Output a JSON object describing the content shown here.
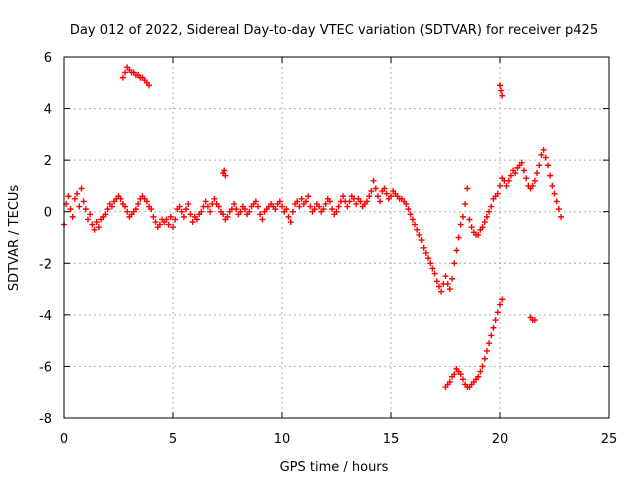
{
  "chart_data": {
    "type": "scatter",
    "title": "Day 012 of 2022, Sidereal Day-to-day VTEC variation (SDTVAR) for receiver p425",
    "xlabel": "GPS time / hours",
    "ylabel": "SDTVAR / TECUs",
    "xlim": [
      0,
      25
    ],
    "ylim": [
      -8,
      6
    ],
    "xticks": [
      0,
      5,
      10,
      15,
      20,
      25
    ],
    "yticks": [
      -8,
      -6,
      -4,
      -2,
      0,
      2,
      4,
      6
    ],
    "grid": true,
    "marker": "+",
    "color": "#ff0000",
    "series": [
      {
        "name": "SDTVAR",
        "points": [
          [
            0.0,
            -0.5
          ],
          [
            0.1,
            0.3
          ],
          [
            0.2,
            0.6
          ],
          [
            0.3,
            0.1
          ],
          [
            0.4,
            -0.2
          ],
          [
            0.5,
            0.5
          ],
          [
            0.6,
            0.7
          ],
          [
            0.7,
            0.2
          ],
          [
            0.8,
            0.9
          ],
          [
            0.9,
            0.4
          ],
          [
            1.0,
            0.1
          ],
          [
            1.1,
            -0.3
          ],
          [
            1.2,
            -0.1
          ],
          [
            1.3,
            -0.5
          ],
          [
            1.4,
            -0.7
          ],
          [
            1.5,
            -0.4
          ],
          [
            1.6,
            -0.6
          ],
          [
            1.7,
            -0.3
          ],
          [
            1.8,
            -0.2
          ],
          [
            1.9,
            -0.1
          ],
          [
            2.0,
            0.1
          ],
          [
            2.1,
            0.3
          ],
          [
            2.2,
            0.2
          ],
          [
            2.3,
            0.4
          ],
          [
            2.4,
            0.5
          ],
          [
            2.5,
            0.6
          ],
          [
            2.6,
            0.5
          ],
          [
            2.7,
            0.3
          ],
          [
            2.8,
            0.2
          ],
          [
            2.9,
            0.0
          ],
          [
            3.0,
            -0.2
          ],
          [
            3.1,
            -0.1
          ],
          [
            3.2,
            0.0
          ],
          [
            3.3,
            0.1
          ],
          [
            3.4,
            0.3
          ],
          [
            3.5,
            0.5
          ],
          [
            3.6,
            0.6
          ],
          [
            3.7,
            0.5
          ],
          [
            3.8,
            0.4
          ],
          [
            3.9,
            0.2
          ],
          [
            4.0,
            0.1
          ],
          [
            4.1,
            -0.2
          ],
          [
            4.2,
            -0.4
          ],
          [
            4.3,
            -0.6
          ],
          [
            4.4,
            -0.5
          ],
          [
            4.5,
            -0.3
          ],
          [
            4.6,
            -0.4
          ],
          [
            4.7,
            -0.3
          ],
          [
            4.8,
            -0.5
          ],
          [
            4.9,
            -0.2
          ],
          [
            5.0,
            -0.6
          ],
          [
            5.1,
            -0.3
          ],
          [
            5.2,
            0.1
          ],
          [
            5.3,
            0.2
          ],
          [
            5.4,
            0.0
          ],
          [
            5.5,
            -0.2
          ],
          [
            5.6,
            0.1
          ],
          [
            5.7,
            0.3
          ],
          [
            5.8,
            -0.1
          ],
          [
            5.9,
            -0.4
          ],
          [
            6.0,
            -0.2
          ],
          [
            6.1,
            -0.3
          ],
          [
            6.2,
            -0.1
          ],
          [
            6.3,
            0.0
          ],
          [
            6.4,
            0.2
          ],
          [
            6.5,
            0.4
          ],
          [
            6.6,
            0.2
          ],
          [
            6.7,
            0.0
          ],
          [
            6.8,
            0.3
          ],
          [
            6.9,
            0.5
          ],
          [
            7.0,
            0.3
          ],
          [
            7.1,
            0.2
          ],
          [
            7.2,
            0.0
          ],
          [
            7.3,
            -0.1
          ],
          [
            7.4,
            -0.3
          ],
          [
            7.5,
            -0.2
          ],
          [
            7.6,
            0.0
          ],
          [
            7.7,
            0.1
          ],
          [
            7.8,
            0.3
          ],
          [
            7.9,
            0.1
          ],
          [
            8.0,
            -0.1
          ],
          [
            8.1,
            0.0
          ],
          [
            8.2,
            0.2
          ],
          [
            8.3,
            0.1
          ],
          [
            8.4,
            -0.1
          ],
          [
            8.5,
            0.0
          ],
          [
            8.6,
            0.2
          ],
          [
            8.7,
            0.3
          ],
          [
            8.8,
            0.4
          ],
          [
            8.9,
            0.2
          ],
          [
            9.0,
            -0.1
          ],
          [
            9.1,
            -0.3
          ],
          [
            9.2,
            0.0
          ],
          [
            9.3,
            0.1
          ],
          [
            9.4,
            0.2
          ],
          [
            9.5,
            0.3
          ],
          [
            9.6,
            0.2
          ],
          [
            9.7,
            0.1
          ],
          [
            9.8,
            0.3
          ],
          [
            9.9,
            0.4
          ],
          [
            10.0,
            0.2
          ],
          [
            10.1,
            0.0
          ],
          [
            10.2,
            0.1
          ],
          [
            10.3,
            -0.2
          ],
          [
            10.4,
            -0.4
          ],
          [
            10.5,
            0.0
          ],
          [
            10.6,
            0.3
          ],
          [
            10.7,
            0.4
          ],
          [
            10.8,
            0.2
          ],
          [
            10.9,
            0.5
          ],
          [
            11.0,
            0.3
          ],
          [
            11.1,
            0.4
          ],
          [
            11.2,
            0.6
          ],
          [
            11.3,
            0.2
          ],
          [
            11.4,
            0.0
          ],
          [
            11.5,
            0.1
          ],
          [
            11.6,
            0.3
          ],
          [
            11.7,
            0.2
          ],
          [
            11.8,
            0.0
          ],
          [
            11.9,
            0.1
          ],
          [
            12.0,
            0.3
          ],
          [
            12.1,
            0.5
          ],
          [
            12.2,
            0.4
          ],
          [
            12.3,
            0.1
          ],
          [
            12.4,
            -0.1
          ],
          [
            12.5,
            0.0
          ],
          [
            12.6,
            0.2
          ],
          [
            12.7,
            0.4
          ],
          [
            12.8,
            0.6
          ],
          [
            12.9,
            0.4
          ],
          [
            13.0,
            0.2
          ],
          [
            13.1,
            0.4
          ],
          [
            13.2,
            0.6
          ],
          [
            13.3,
            0.5
          ],
          [
            13.4,
            0.3
          ],
          [
            13.5,
            0.5
          ],
          [
            13.6,
            0.4
          ],
          [
            13.7,
            0.2
          ],
          [
            13.8,
            0.3
          ],
          [
            13.9,
            0.4
          ],
          [
            14.0,
            0.6
          ],
          [
            14.1,
            0.8
          ],
          [
            14.2,
            1.2
          ],
          [
            14.3,
            0.9
          ],
          [
            14.4,
            0.6
          ],
          [
            14.5,
            0.4
          ],
          [
            14.6,
            0.8
          ],
          [
            14.7,
            0.9
          ],
          [
            14.8,
            0.7
          ],
          [
            14.9,
            0.5
          ],
          [
            15.0,
            0.6
          ],
          [
            15.1,
            0.8
          ],
          [
            15.2,
            0.7
          ],
          [
            15.3,
            0.6
          ],
          [
            15.4,
            0.5
          ],
          [
            15.5,
            0.5
          ],
          [
            15.6,
            0.4
          ],
          [
            15.7,
            0.3
          ],
          [
            15.8,
            0.1
          ],
          [
            15.9,
            -0.1
          ],
          [
            16.0,
            -0.3
          ],
          [
            16.1,
            -0.5
          ],
          [
            16.2,
            -0.7
          ],
          [
            16.3,
            -0.9
          ],
          [
            16.4,
            -1.1
          ],
          [
            16.5,
            -1.4
          ],
          [
            16.6,
            -1.6
          ],
          [
            16.7,
            -1.8
          ],
          [
            16.8,
            -2.0
          ],
          [
            16.9,
            -2.2
          ],
          [
            17.0,
            -2.4
          ],
          [
            17.1,
            -2.7
          ],
          [
            17.2,
            -2.9
          ],
          [
            17.3,
            -3.1
          ],
          [
            17.4,
            -2.8
          ],
          [
            17.5,
            -2.5
          ],
          [
            17.6,
            -2.8
          ],
          [
            17.7,
            -3.0
          ],
          [
            17.8,
            -2.6
          ],
          [
            17.9,
            -2.0
          ],
          [
            18.0,
            -1.5
          ],
          [
            18.1,
            -1.0
          ],
          [
            18.2,
            -0.5
          ],
          [
            18.3,
            -0.2
          ],
          [
            18.4,
            0.3
          ],
          [
            18.5,
            0.9
          ],
          [
            18.6,
            -0.3
          ],
          [
            18.7,
            -0.6
          ],
          [
            18.8,
            -0.8
          ],
          [
            18.9,
            -0.9
          ],
          [
            19.0,
            -0.9
          ],
          [
            19.1,
            -0.7
          ],
          [
            19.2,
            -0.6
          ],
          [
            19.3,
            -0.4
          ],
          [
            19.4,
            -0.2
          ],
          [
            19.5,
            0.0
          ],
          [
            19.6,
            0.2
          ],
          [
            19.7,
            0.5
          ],
          [
            19.8,
            0.6
          ],
          [
            19.9,
            0.7
          ],
          [
            20.0,
            1.0
          ],
          [
            20.1,
            1.3
          ],
          [
            20.2,
            1.2
          ],
          [
            20.3,
            1.0
          ],
          [
            20.4,
            1.2
          ],
          [
            20.5,
            1.4
          ],
          [
            20.6,
            1.6
          ],
          [
            20.7,
            1.5
          ],
          [
            20.8,
            1.7
          ],
          [
            20.9,
            1.8
          ],
          [
            21.0,
            1.9
          ],
          [
            21.1,
            1.6
          ],
          [
            21.2,
            1.3
          ],
          [
            21.3,
            1.0
          ],
          [
            21.4,
            0.9
          ],
          [
            21.5,
            1.0
          ],
          [
            21.6,
            1.2
          ],
          [
            21.7,
            1.5
          ],
          [
            21.8,
            1.8
          ],
          [
            21.9,
            2.2
          ],
          [
            22.0,
            2.4
          ],
          [
            22.1,
            2.1
          ],
          [
            22.2,
            1.8
          ],
          [
            22.3,
            1.4
          ],
          [
            22.4,
            1.0
          ],
          [
            22.5,
            0.7
          ],
          [
            22.6,
            0.4
          ],
          [
            22.7,
            0.1
          ],
          [
            22.8,
            -0.2
          ],
          [
            2.7,
            5.2
          ],
          [
            2.8,
            5.4
          ],
          [
            2.9,
            5.6
          ],
          [
            3.0,
            5.5
          ],
          [
            3.1,
            5.4
          ],
          [
            3.2,
            5.4
          ],
          [
            3.3,
            5.3
          ],
          [
            3.4,
            5.3
          ],
          [
            3.5,
            5.2
          ],
          [
            3.6,
            5.2
          ],
          [
            3.7,
            5.1
          ],
          [
            3.8,
            5.0
          ],
          [
            3.9,
            4.9
          ],
          [
            7.3,
            1.5
          ],
          [
            7.35,
            1.6
          ],
          [
            7.4,
            1.4
          ],
          [
            20.0,
            4.9
          ],
          [
            20.05,
            4.7
          ],
          [
            20.1,
            4.5
          ],
          [
            21.4,
            -4.1
          ],
          [
            21.5,
            -4.2
          ],
          [
            21.6,
            -4.2
          ],
          [
            17.5,
            -6.8
          ],
          [
            17.6,
            -6.7
          ],
          [
            17.7,
            -6.6
          ],
          [
            17.8,
            -6.4
          ],
          [
            17.9,
            -6.3
          ],
          [
            18.0,
            -6.1
          ],
          [
            18.1,
            -6.2
          ],
          [
            18.2,
            -6.3
          ],
          [
            18.3,
            -6.5
          ],
          [
            18.4,
            -6.7
          ],
          [
            18.5,
            -6.8
          ],
          [
            18.6,
            -6.8
          ],
          [
            18.7,
            -6.7
          ],
          [
            18.8,
            -6.6
          ],
          [
            18.9,
            -6.5
          ],
          [
            19.0,
            -6.4
          ],
          [
            19.1,
            -6.2
          ],
          [
            19.2,
            -6.0
          ],
          [
            19.3,
            -5.7
          ],
          [
            19.4,
            -5.4
          ],
          [
            19.5,
            -5.1
          ],
          [
            19.6,
            -4.8
          ],
          [
            19.7,
            -4.5
          ],
          [
            19.8,
            -4.2
          ],
          [
            19.9,
            -3.9
          ],
          [
            20.0,
            -3.6
          ],
          [
            20.1,
            -3.4
          ]
        ]
      }
    ]
  }
}
